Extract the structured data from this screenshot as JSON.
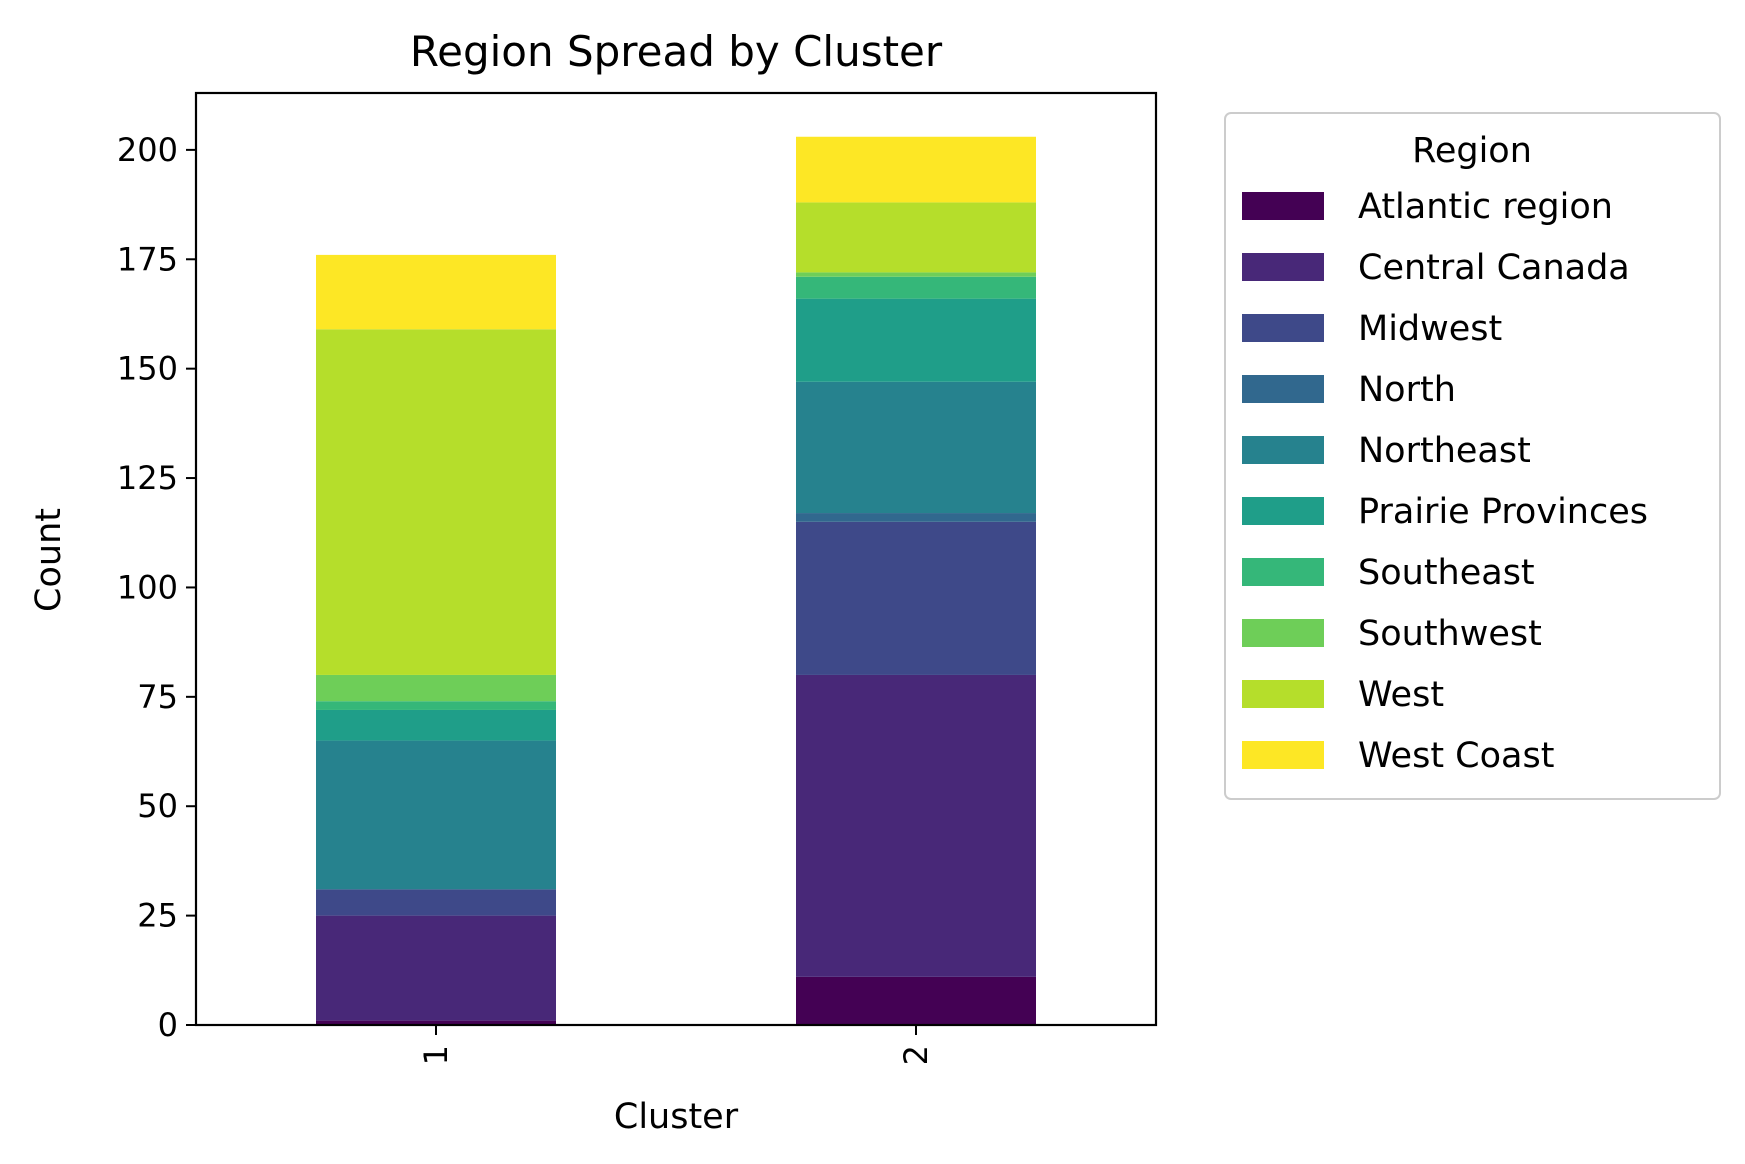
{
  "chart_data": {
    "type": "bar",
    "stacked": true,
    "title": "Region Spread by Cluster",
    "xlabel": "Cluster",
    "ylabel": "Count",
    "categories": [
      "1",
      "2"
    ],
    "ylim": [
      0,
      213
    ],
    "yticks": [
      0,
      25,
      50,
      75,
      100,
      125,
      150,
      175,
      200
    ],
    "legend_title": "Region",
    "legend_position": "outside-right",
    "series": [
      {
        "name": "Atlantic region",
        "color": "#440154",
        "values": [
          1,
          11
        ]
      },
      {
        "name": "Central Canada",
        "color": "#482878",
        "values": [
          24,
          69
        ]
      },
      {
        "name": "Midwest",
        "color": "#3e4989",
        "values": [
          6,
          35
        ]
      },
      {
        "name": "North",
        "color": "#31688e",
        "values": [
          0,
          2
        ]
      },
      {
        "name": "Northeast",
        "color": "#26828e",
        "values": [
          34,
          30
        ]
      },
      {
        "name": "Prairie Provinces",
        "color": "#1f9e89",
        "values": [
          7,
          19
        ]
      },
      {
        "name": "Southeast",
        "color": "#35b779",
        "values": [
          2,
          5
        ]
      },
      {
        "name": "Southwest",
        "color": "#6ece58",
        "values": [
          6,
          1
        ]
      },
      {
        "name": "West",
        "color": "#b5de2b",
        "values": [
          79,
          16
        ]
      },
      {
        "name": "West Coast",
        "color": "#fde725",
        "values": [
          17,
          15
        ]
      }
    ]
  }
}
